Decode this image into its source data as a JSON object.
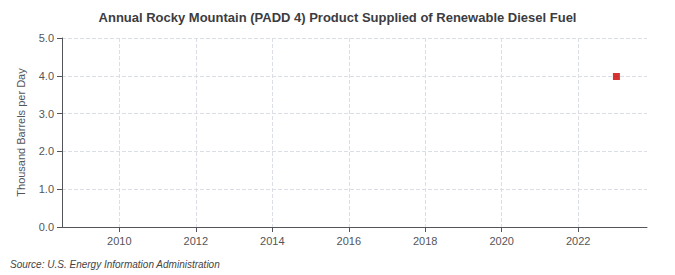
{
  "chart_data": {
    "type": "scatter",
    "title": "Annual Rocky Mountain (PADD 4) Product Supplied of Renewable Diesel Fuel",
    "ylabel": "Thousand Barrels per Day",
    "annotation": "Source: U.S. Energy Information Administration",
    "x": [
      2023
    ],
    "values": [
      3.981
    ],
    "color": "#cc0000",
    "marker": "square",
    "xlim": [
      2008.5,
      2023.8
    ],
    "xticks": [
      2010,
      2012,
      2014,
      2016,
      2018,
      2020,
      2022
    ],
    "ylim": [
      0.0,
      5.0
    ],
    "yticks": [
      {
        "value": 0,
        "label": "0.0"
      },
      {
        "value": 1,
        "label": "1.0"
      },
      {
        "value": 2,
        "label": "2.0"
      },
      {
        "value": 3,
        "label": "3.0"
      },
      {
        "value": 4,
        "label": "4.0"
      },
      {
        "value": 5,
        "label": "5.0"
      }
    ],
    "grid": true
  }
}
